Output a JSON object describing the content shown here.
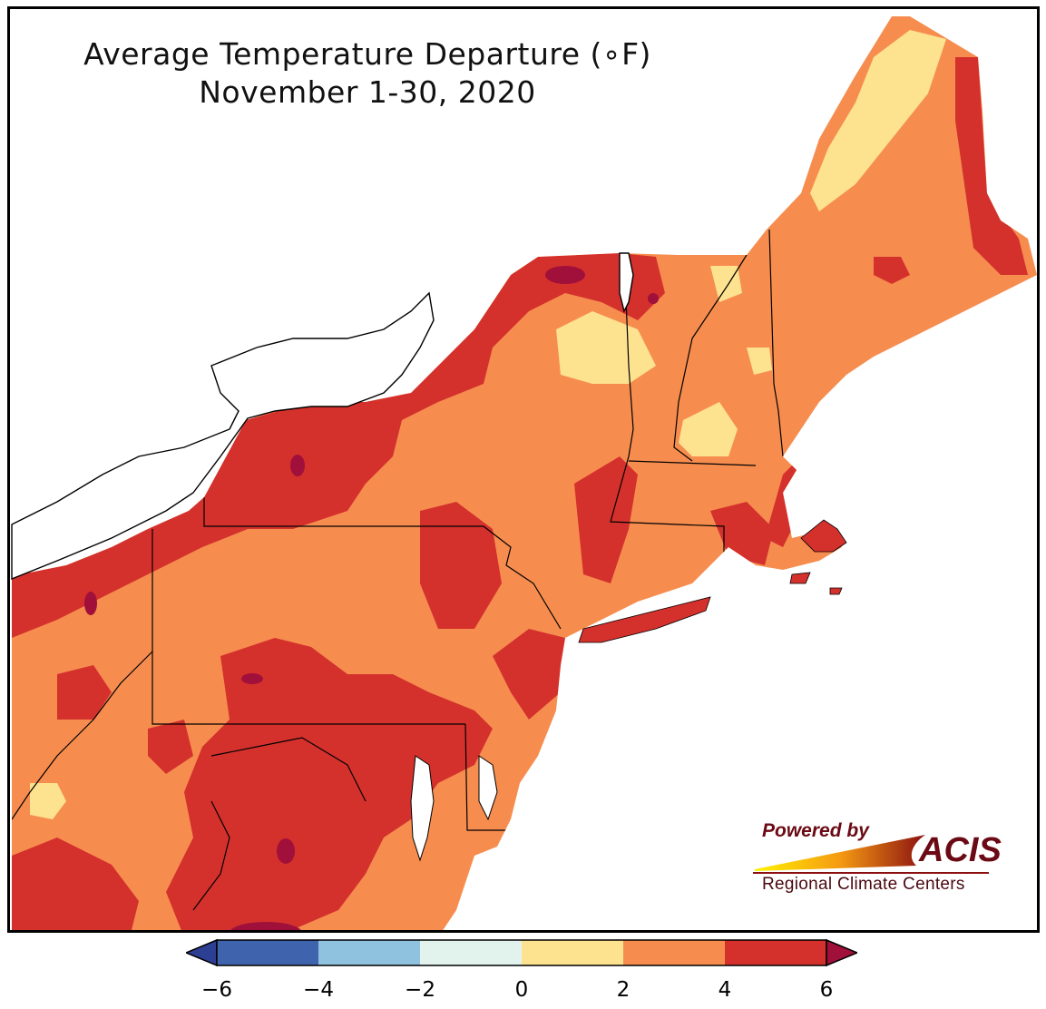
{
  "title": {
    "line1": "Average Temperature Departure (∘F)",
    "line2": "November 1-30, 2020"
  },
  "legend": {
    "type": "colorbar",
    "ticks": [
      "−6",
      "−4",
      "−2",
      "0",
      "2",
      "4",
      "6"
    ],
    "bins": [
      {
        "from": -6,
        "to": -4,
        "color": "#4063ad"
      },
      {
        "from": -4,
        "to": -2,
        "color": "#8fc2de"
      },
      {
        "from": -2,
        "to": 0,
        "color": "#e2f3ee"
      },
      {
        "from": 0,
        "to": 2,
        "color": "#fde290"
      },
      {
        "from": 2,
        "to": 4,
        "color": "#f68d4f"
      },
      {
        "from": 4,
        "to": 6,
        "color": "#d4312d"
      }
    ],
    "under_color": "#2d3f93",
    "over_color": "#a0103a",
    "extend": "both"
  },
  "map": {
    "region": "Northeast United States",
    "dominant_ranges": [
      "2 to 4",
      "4 to 6"
    ],
    "colors": {
      "range_0_2": "#fde290",
      "range_2_4": "#f68d4f",
      "range_4_6": "#d4312d",
      "above_6": "#a0103a",
      "water": "#ffffff",
      "border": "#000000"
    }
  },
  "logo": {
    "powered_by": "Powered by",
    "name": "ACIS",
    "subtitle": "Regional Climate Centers"
  }
}
